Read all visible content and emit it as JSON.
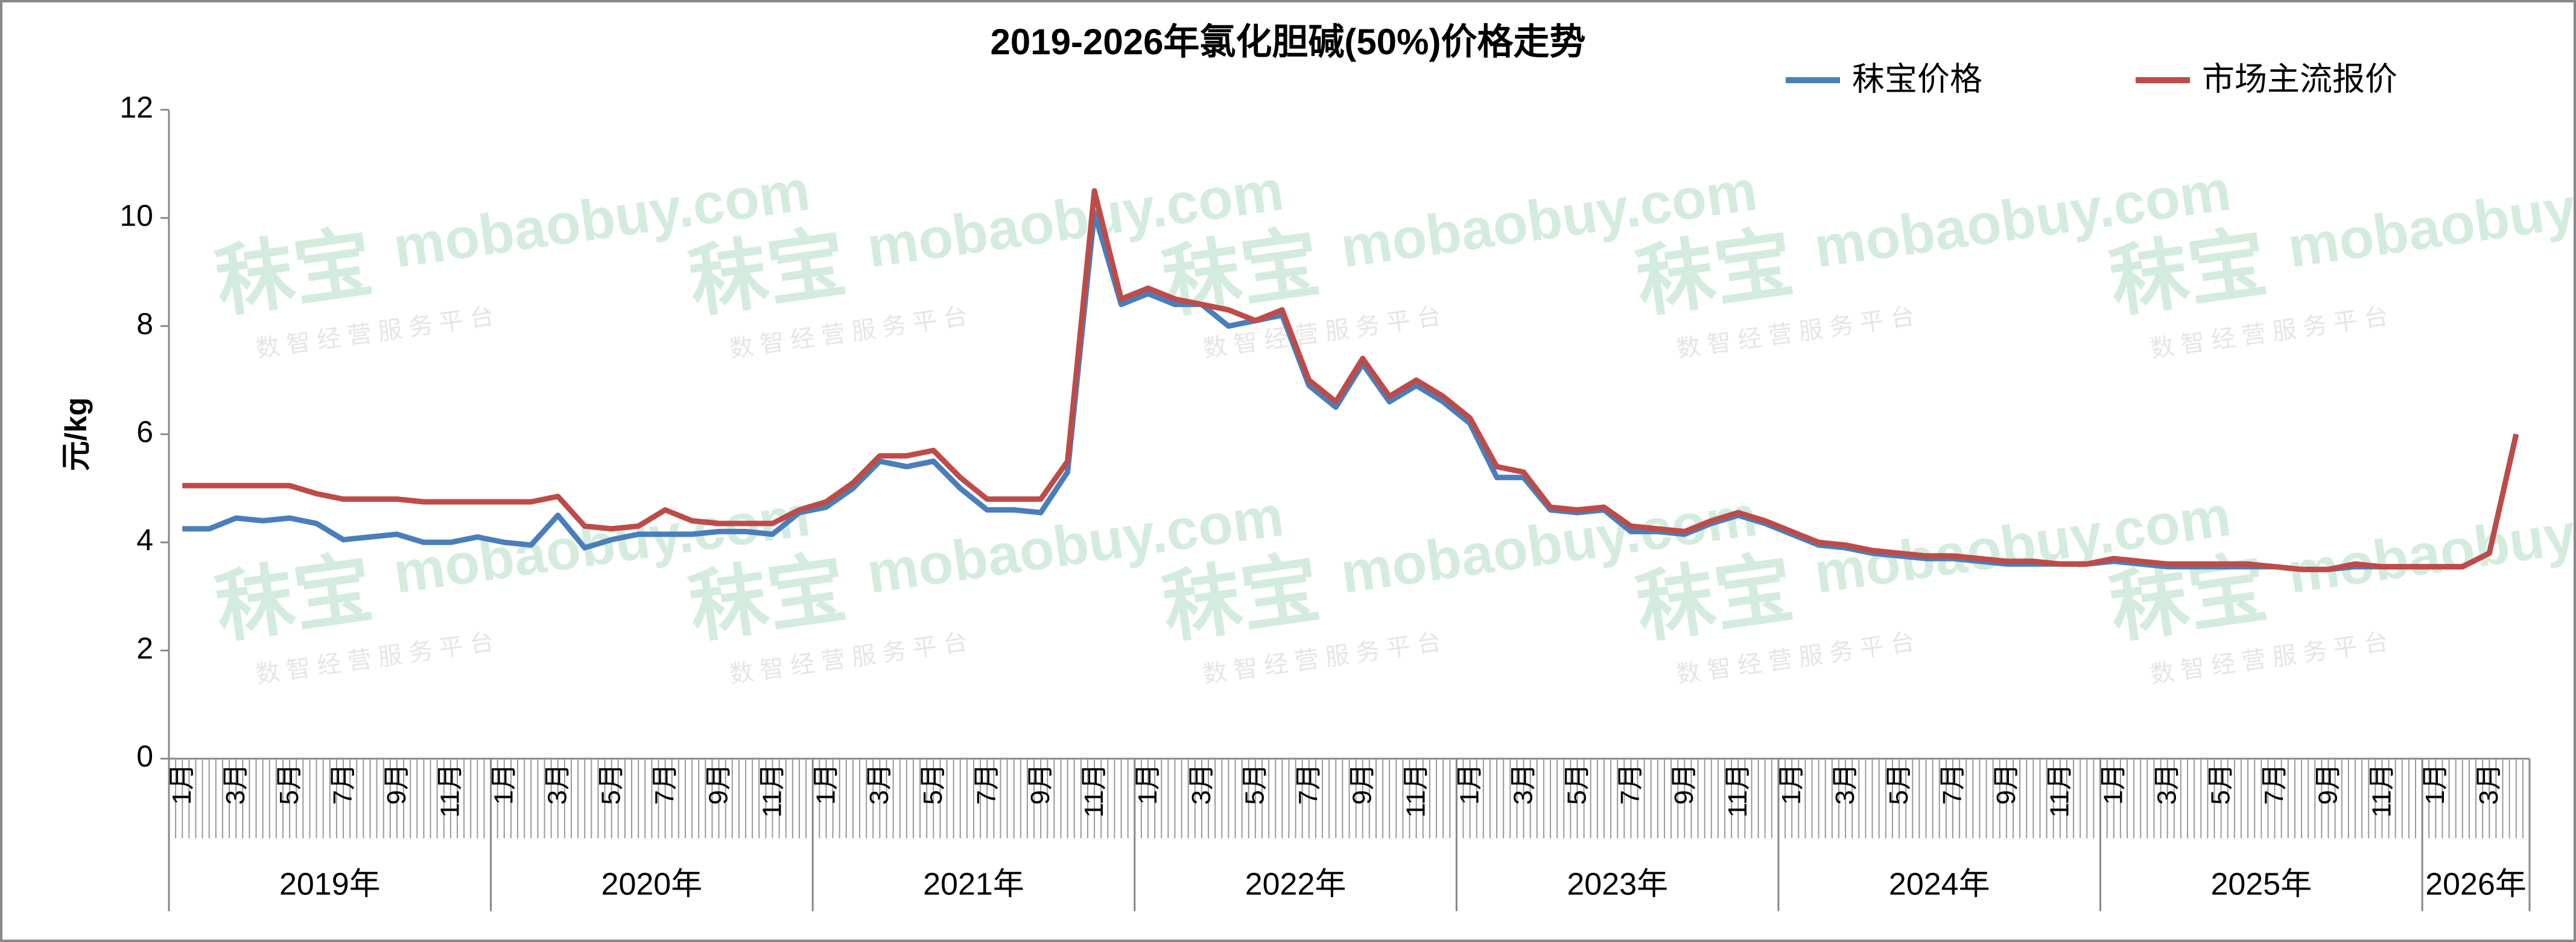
{
  "chart_data": {
    "type": "line",
    "title": "2019-2026年氯化胆碱(50%)价格走势",
    "y_label": "元/kg",
    "ylim": [
      0,
      12
    ],
    "yticks": [
      0,
      2,
      4,
      6,
      8,
      10,
      12
    ],
    "legend": "top-right",
    "categories": [
      "1月",
      null,
      "3月",
      null,
      "5月",
      null,
      "7月",
      null,
      "9月",
      null,
      "11月",
      null,
      "1月",
      null,
      "3月",
      null,
      "5月",
      null,
      "7月",
      null,
      "9月",
      null,
      "11月",
      null,
      "1月",
      null,
      "3月",
      null,
      "5月",
      null,
      "7月",
      null,
      "9月",
      null,
      "11月",
      null,
      "1月",
      null,
      "3月",
      null,
      "5月",
      null,
      "7月",
      null,
      "9月",
      null,
      "11月",
      null,
      "1月",
      null,
      "3月",
      null,
      "5月",
      null,
      "7月",
      null,
      "9月",
      null,
      "11月",
      null,
      "1月",
      null,
      "3月",
      null,
      "5月",
      null,
      "7月",
      null,
      "9月",
      null,
      "11月",
      null,
      "1月",
      null,
      "3月",
      null,
      "5月",
      null,
      "7月",
      null,
      "9月",
      null,
      "11月",
      null,
      "1月",
      null,
      "3月",
      null
    ],
    "groups": [
      {
        "label": "2019年",
        "count": 12
      },
      {
        "label": "2020年",
        "count": 12
      },
      {
        "label": "2021年",
        "count": 12
      },
      {
        "label": "2022年",
        "count": 12
      },
      {
        "label": "2023年",
        "count": 12
      },
      {
        "label": "2024年",
        "count": 12
      },
      {
        "label": "2025年",
        "count": 12
      },
      {
        "label": "2026年",
        "count": 4
      }
    ],
    "series": [
      {
        "name": "秣宝价格",
        "color": "#4a7ebb",
        "values": [
          4.25,
          4.25,
          4.45,
          4.4,
          4.45,
          4.35,
          4.05,
          4.1,
          4.15,
          4.0,
          4.0,
          4.1,
          4.0,
          3.95,
          4.5,
          3.9,
          4.05,
          4.15,
          4.15,
          4.15,
          4.2,
          4.2,
          4.15,
          4.55,
          4.65,
          5.0,
          5.5,
          5.4,
          5.5,
          5.0,
          4.6,
          4.6,
          4.55,
          5.3,
          10.1,
          8.4,
          8.6,
          8.4,
          8.4,
          8.0,
          8.1,
          8.2,
          6.9,
          6.5,
          7.3,
          6.6,
          6.9,
          6.6,
          6.2,
          5.2,
          5.2,
          4.6,
          4.55,
          4.6,
          4.2,
          4.2,
          4.15,
          4.35,
          4.5,
          4.35,
          4.15,
          3.95,
          3.9,
          3.8,
          3.75,
          3.7,
          3.7,
          3.65,
          3.6,
          3.6,
          3.6,
          3.6,
          3.65,
          3.6,
          3.55,
          3.55,
          3.55,
          3.55,
          3.55,
          3.5,
          3.5,
          3.55,
          3.55,
          3.55,
          3.55,
          3.55,
          3.8,
          6.0
        ]
      },
      {
        "name": "市场主流报价",
        "color": "#be4b48",
        "values": [
          5.05,
          5.05,
          5.05,
          5.05,
          5.05,
          4.9,
          4.8,
          4.8,
          4.8,
          4.75,
          4.75,
          4.75,
          4.75,
          4.75,
          4.85,
          4.3,
          4.25,
          4.3,
          4.6,
          4.4,
          4.35,
          4.35,
          4.35,
          4.6,
          4.75,
          5.1,
          5.6,
          5.6,
          5.7,
          5.2,
          4.8,
          4.8,
          4.8,
          5.5,
          10.5,
          8.5,
          8.7,
          8.5,
          8.4,
          8.3,
          8.1,
          8.3,
          7.0,
          6.6,
          7.4,
          6.7,
          7.0,
          6.7,
          6.3,
          5.4,
          5.3,
          4.65,
          4.6,
          4.65,
          4.3,
          4.25,
          4.2,
          4.4,
          4.55,
          4.4,
          4.2,
          4.0,
          3.95,
          3.85,
          3.8,
          3.75,
          3.75,
          3.7,
          3.65,
          3.65,
          3.6,
          3.6,
          3.7,
          3.65,
          3.6,
          3.6,
          3.6,
          3.6,
          3.55,
          3.5,
          3.5,
          3.6,
          3.55,
          3.55,
          3.55,
          3.55,
          3.8,
          6.0
        ]
      }
    ],
    "watermark": {
      "brand": "秣宝",
      "site": "mobaobuy.com",
      "tagline": "数 智 经 营 服 务 平 台"
    }
  }
}
